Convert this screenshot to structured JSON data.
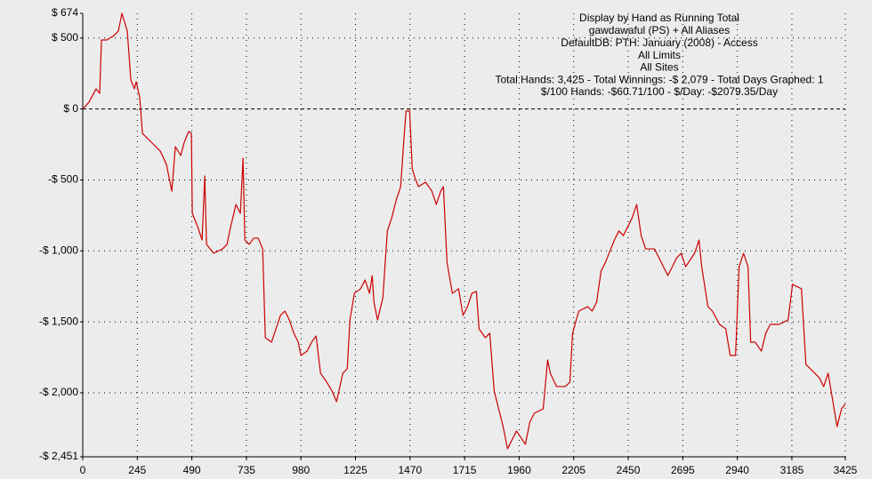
{
  "chart_data": {
    "type": "line",
    "title": "Display by Hand as Running Total",
    "subtitle_lines": [
      "gawdawaful (PS) + All Aliases",
      "DefaultDB: PTH: January (2008) - Access",
      "All Limits",
      "All Sites",
      "Total Hands: 3,425 - Total Winnings: -$ 2,079 - Total Days Graphed: 1",
      "$/100 Hands: -$60.71/100 - $/Day: -$2079.35/Day"
    ],
    "color": "#cc0000",
    "grid": true,
    "xlim": [
      0,
      3425
    ],
    "ylim": [
      -2451,
      674
    ],
    "xticks": [
      0,
      245,
      490,
      735,
      980,
      1225,
      1470,
      1715,
      1960,
      2205,
      2450,
      2695,
      2940,
      3185,
      3425
    ],
    "yticks": [
      {
        "value": 674,
        "label": "$ 674"
      },
      {
        "value": 500,
        "label": "$ 500"
      },
      {
        "value": 0,
        "label": "$ 0"
      },
      {
        "value": -500,
        "label": "-$ 500"
      },
      {
        "value": -1000,
        "label": "-$ 1,000"
      },
      {
        "value": -1500,
        "label": "-$ 1,500"
      },
      {
        "value": -2000,
        "label": "-$ 2,000"
      },
      {
        "value": -2451,
        "label": "-$ 2,451"
      }
    ],
    "x": [
      0,
      28,
      60,
      76,
      84,
      108,
      140,
      160,
      176,
      200,
      216,
      232,
      240,
      256,
      268,
      288,
      308,
      348,
      376,
      400,
      416,
      440,
      456,
      476,
      488,
      492,
      516,
      536,
      548,
      556,
      588,
      628,
      648,
      660,
      688,
      708,
      720,
      728,
      748,
      768,
      788,
      808,
      820,
      848,
      888,
      908,
      928,
      948,
      968,
      980,
      1008,
      1028,
      1048,
      1068,
      1096,
      1120,
      1140,
      1168,
      1188,
      1200,
      1220,
      1248,
      1268,
      1288,
      1300,
      1308,
      1324,
      1348,
      1368,
      1388,
      1408,
      1428,
      1440,
      1452,
      1468,
      1480,
      1492,
      1508,
      1540,
      1568,
      1588,
      1608,
      1620,
      1636,
      1660,
      1688,
      1708,
      1728,
      1748,
      1768,
      1780,
      1808,
      1828,
      1848,
      1868,
      1888,
      1908,
      1928,
      1948,
      1988,
      2008,
      2028,
      2068,
      2088,
      2100,
      2128,
      2168,
      2188,
      2200,
      2228,
      2268,
      2288,
      2308,
      2328,
      2348,
      2388,
      2408,
      2428,
      2448,
      2468,
      2488,
      2508,
      2528,
      2568,
      2588,
      2628,
      2668,
      2688,
      2708,
      2748,
      2768,
      2780,
      2808,
      2828,
      2860,
      2888,
      2908,
      2932,
      2948,
      2968,
      2988,
      3000,
      3020,
      3048,
      3068,
      3088,
      3128,
      3168,
      3188,
      3228,
      3248,
      3268,
      3308,
      3328,
      3348,
      3368,
      3388,
      3408,
      3425
    ],
    "values": [
      0,
      48,
      142,
      110,
      486,
      486,
      517,
      549,
      674,
      549,
      204,
      142,
      192,
      79,
      -172,
      -203,
      -234,
      -297,
      -391,
      -579,
      -266,
      -328,
      -234,
      -159,
      -172,
      -735,
      -829,
      -923,
      -472,
      -954,
      -1017,
      -986,
      -954,
      -860,
      -673,
      -735,
      -347,
      -923,
      -954,
      -910,
      -910,
      -986,
      -1612,
      -1643,
      -1455,
      -1424,
      -1487,
      -1580,
      -1643,
      -1737,
      -1706,
      -1643,
      -1600,
      -1862,
      -1925,
      -1988,
      -2063,
      -1862,
      -1831,
      -1487,
      -1299,
      -1267,
      -1205,
      -1299,
      -1174,
      -1361,
      -1487,
      -1330,
      -860,
      -766,
      -641,
      -547,
      -266,
      -15,
      -15,
      -422,
      -485,
      -547,
      -516,
      -579,
      -673,
      -579,
      -547,
      -1080,
      -1299,
      -1267,
      -1455,
      -1393,
      -1299,
      -1286,
      -1549,
      -1612,
      -1580,
      -1988,
      -2113,
      -2238,
      -2395,
      -2332,
      -2269,
      -2363,
      -2207,
      -2144,
      -2113,
      -1768,
      -1862,
      -1956,
      -1956,
      -1925,
      -1580,
      -1424,
      -1393,
      -1424,
      -1361,
      -1142,
      -1080,
      -923,
      -860,
      -892,
      -829,
      -766,
      -673,
      -892,
      -986,
      -986,
      -1048,
      -1174,
      -1048,
      -1017,
      -1111,
      -1017,
      -923,
      -1111,
      -1393,
      -1424,
      -1518,
      -1549,
      -1737,
      -1737,
      -1111,
      -1017,
      -1111,
      -1643,
      -1643,
      -1706,
      -1580,
      -1518,
      -1518,
      -1487,
      -1236,
      -1267,
      -1800,
      -1831,
      -1894,
      -1956,
      -1862,
      -2050,
      -2238,
      -2113,
      -2079
    ]
  }
}
